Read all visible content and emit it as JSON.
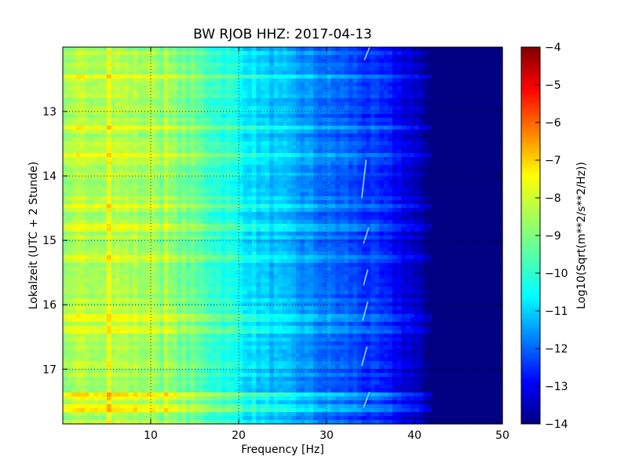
{
  "chart_data": {
    "type": "heatmap",
    "title": "BW RJOB HHZ: 2017-04-13",
    "xlabel": "Frequency [Hz]",
    "ylabel": "Lokalzeit (UTC + 2 Stunde)",
    "xlim": [
      0,
      50
    ],
    "ylim": [
      12.0,
      17.85
    ],
    "y_inverted": true,
    "x_ticks": [
      10,
      20,
      30,
      40,
      50
    ],
    "y_ticks": [
      13,
      14,
      15,
      16,
      17
    ],
    "grid": true,
    "colormap": "jet",
    "colorbar": {
      "label": "Log10(Sqrt(m**2/s**2/Hz))",
      "range": [
        -14,
        -4
      ],
      "ticks": [
        -4,
        -5,
        -6,
        -7,
        -8,
        -9,
        -10,
        -11,
        -12,
        -13,
        -14
      ]
    },
    "spectrum_profile": {
      "frequency_hz": [
        0,
        2,
        5,
        8,
        10,
        13,
        15,
        18,
        20,
        22,
        25,
        28,
        30,
        33,
        35,
        38,
        40,
        41,
        42,
        45,
        50
      ],
      "log_amplitude": [
        -9.0,
        -8.5,
        -8.4,
        -8.6,
        -8.7,
        -9.0,
        -9.3,
        -9.8,
        -10.2,
        -10.6,
        -11.0,
        -11.4,
        -11.7,
        -12.0,
        -12.3,
        -12.8,
        -13.3,
        -13.8,
        -14.0,
        -14.0,
        -14.0
      ]
    },
    "broadband_events": [
      {
        "time_h": 12.45,
        "delta": 0.6
      },
      {
        "time_h": 13.25,
        "delta": 0.5
      },
      {
        "time_h": 13.68,
        "delta": 0.7
      },
      {
        "time_h": 14.48,
        "delta": 0.5
      },
      {
        "time_h": 14.8,
        "delta": 0.6
      },
      {
        "time_h": 15.3,
        "delta": 0.3
      },
      {
        "time_h": 16.22,
        "delta": 0.6
      },
      {
        "time_h": 16.4,
        "delta": 0.4
      },
      {
        "time_h": 17.42,
        "delta": 0.8
      },
      {
        "time_h": 17.62,
        "delta": 1.0
      }
    ],
    "tonal_lines": [
      {
        "frequency_hz": 5.2,
        "delta": 0.5
      },
      {
        "frequency_hz": 10.2,
        "delta": 0.3
      },
      {
        "frequency_hz": 11.8,
        "delta": 0.3
      }
    ],
    "chirp_segments": [
      {
        "t_start": 12.0,
        "t_end": 12.2,
        "f_start": 34.3,
        "f_end": 34.9
      },
      {
        "t_start": 13.75,
        "t_end": 14.35,
        "f_start": 34.0,
        "f_end": 34.5
      },
      {
        "t_start": 14.8,
        "t_end": 15.05,
        "f_start": 34.2,
        "f_end": 34.8
      },
      {
        "t_start": 15.45,
        "t_end": 15.7,
        "f_start": 34.2,
        "f_end": 34.7
      },
      {
        "t_start": 15.95,
        "t_end": 16.25,
        "f_start": 34.1,
        "f_end": 34.7
      },
      {
        "t_start": 16.65,
        "t_end": 16.95,
        "f_start": 34.0,
        "f_end": 34.6
      },
      {
        "t_start": 17.35,
        "t_end": 17.6,
        "f_start": 34.2,
        "f_end": 34.9
      }
    ]
  }
}
